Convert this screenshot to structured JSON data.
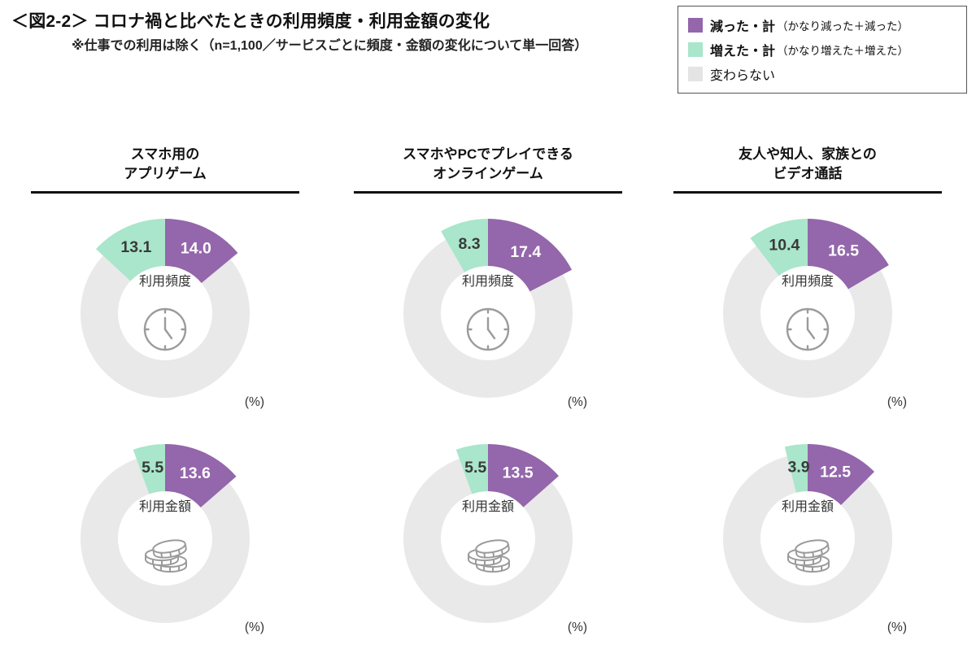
{
  "header": {
    "title": "＜図2-2＞ コロナ禍と比べたときの利用頻度・利用金額の変化",
    "subtitle": "※仕事での利用は除く（n=1,100／サービスごとに頻度・金額の変化について単一回答）"
  },
  "legend": {
    "items": [
      {
        "key": "decreased",
        "label": "減った・計",
        "detail": "（かなり減った＋減った）",
        "color": "#9466ab"
      },
      {
        "key": "increased",
        "label": "増えた・計",
        "detail": "（かなり増えた＋増えた）",
        "color": "#a9e6cb"
      },
      {
        "key": "unchanged",
        "label": "変わらない",
        "detail": "",
        "color": "#e4e4e4"
      }
    ]
  },
  "chart_data": {
    "type": "pie",
    "subtype": "donut-group",
    "unit": "(%)",
    "colors": {
      "decreased": "#9466ab",
      "increased": "#a9e6cb",
      "unchanged": "#e9e9e9",
      "decreased_label": "#ffffff",
      "increased_label": "#3a3a3a"
    },
    "metrics": [
      {
        "key": "frequency",
        "label": "利用頻度",
        "icon": "clock-icon"
      },
      {
        "key": "amount",
        "label": "利用金額",
        "icon": "coins-icon"
      }
    ],
    "services": [
      {
        "title_lines": [
          "スマホ用の",
          "アプリゲーム"
        ],
        "frequency": {
          "decreased": 14.0,
          "increased": 13.1
        },
        "amount": {
          "decreased": 13.6,
          "increased": 5.5
        }
      },
      {
        "title_lines": [
          "スマホやPCでプレイできる",
          "オンラインゲーム"
        ],
        "frequency": {
          "decreased": 17.4,
          "increased": 8.3
        },
        "amount": {
          "decreased": 13.5,
          "increased": 5.5
        }
      },
      {
        "title_lines": [
          "友人や知人、家族との",
          "ビデオ通話"
        ],
        "frequency": {
          "decreased": 16.5,
          "increased": 10.4
        },
        "amount": {
          "decreased": 12.5,
          "increased": 3.9
        }
      }
    ]
  }
}
